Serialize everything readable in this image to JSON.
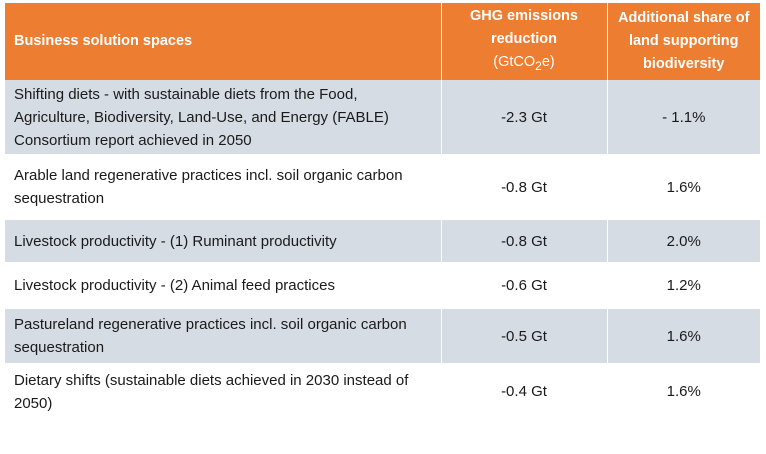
{
  "table": {
    "headers": {
      "solution": "Business solution spaces",
      "ghg_line1": "GHG emissions",
      "ghg_line2": "reduction",
      "ghg_unit_pre": "(GtCO",
      "ghg_unit_sub": "2",
      "ghg_unit_post": "e)",
      "land": "Additional share of land supporting biodiversity"
    },
    "rows": [
      {
        "solution": "Shifting diets - with sustainable diets from the Food, Agriculture, Biodiversity, Land-Use, and Energy (FABLE) Consortium report achieved in 2050",
        "ghg": "-2.3 Gt",
        "land": "- 1.1%"
      },
      {
        "solution": "Arable land regenerative practices incl. soil organic carbon sequestration",
        "ghg": "-0.8 Gt",
        "land": "1.6%"
      },
      {
        "solution": "Livestock productivity - (1) Ruminant productivity",
        "ghg": "-0.8 Gt",
        "land": "2.0%"
      },
      {
        "solution": "Livestock productivity - (2) Animal feed practices",
        "ghg": "-0.6 Gt",
        "land": "1.2%"
      },
      {
        "solution": "Pastureland regenerative practices incl. soil organic carbon sequestration",
        "ghg": "-0.5 Gt",
        "land": "1.6%"
      },
      {
        "solution": "Dietary shifts (sustainable diets achieved in 2030 instead of 2050)",
        "ghg": "-0.4 Gt",
        "land": "1.6%"
      }
    ],
    "colors": {
      "header": "#ed7d31",
      "shaded_row": "#d6dce4",
      "header_text": "#ffffff"
    }
  }
}
